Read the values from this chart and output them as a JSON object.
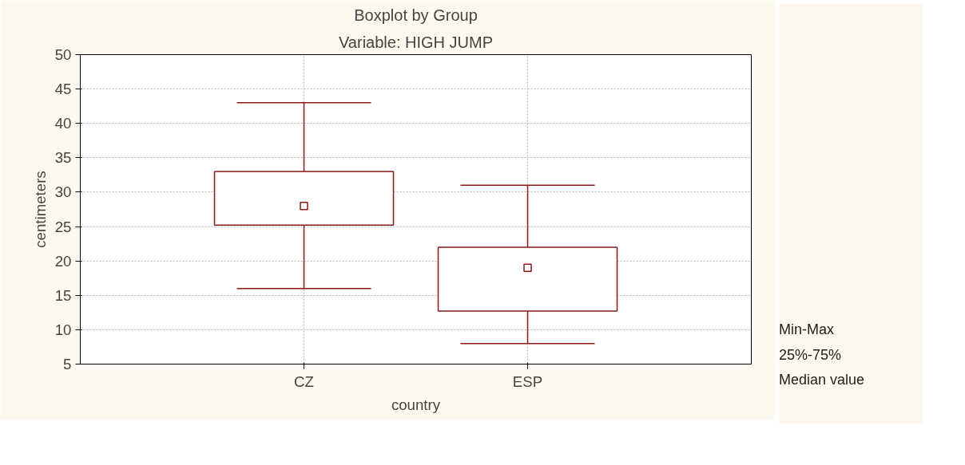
{
  "chart_data": {
    "type": "box",
    "title": "Boxplot by Group",
    "subtitle": "Variable: HIGH JUMP",
    "xlabel": "country",
    "ylabel": "centimeters",
    "categories": [
      "CZ",
      "ESP"
    ],
    "boxes": [
      {
        "low": 16,
        "q1": 25.2,
        "median": 28,
        "q3": 33,
        "high": 43
      },
      {
        "low": 8,
        "q1": 12.7,
        "median": 19,
        "q3": 22,
        "high": 31
      }
    ],
    "color": "#8b1a1a",
    "ylim": [
      5,
      50
    ],
    "yticks": [
      5,
      10,
      15,
      20,
      25,
      30,
      35,
      40,
      45,
      50
    ],
    "grid": true,
    "marker": "square",
    "annotations": [
      "Min-Max",
      "25%-75%",
      "Median value"
    ]
  }
}
